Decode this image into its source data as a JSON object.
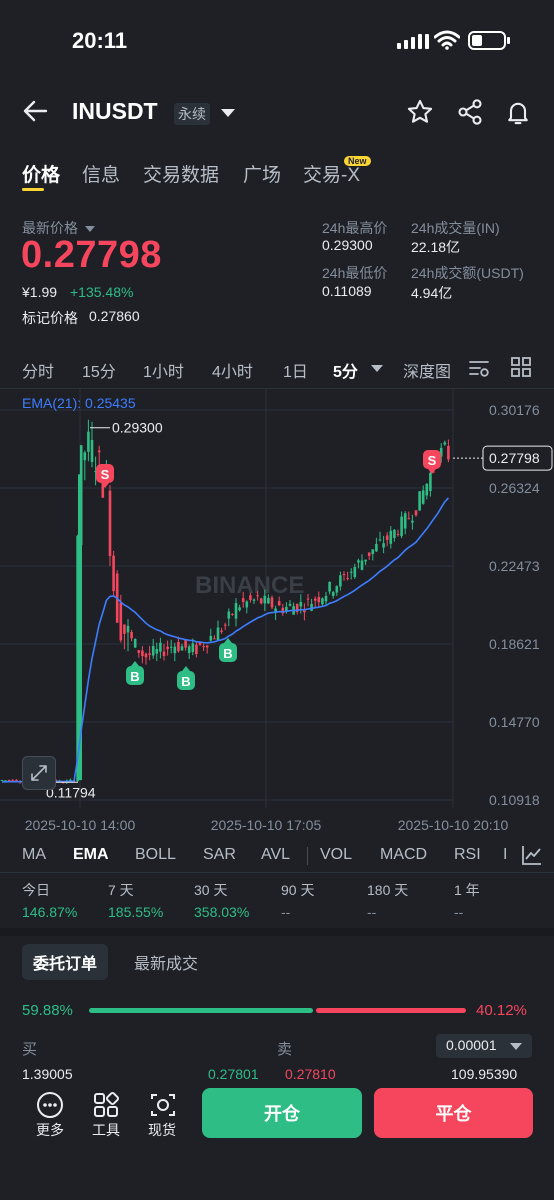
{
  "status_bar": {
    "time": "20:11"
  },
  "header": {
    "symbol": "INUSDT",
    "contract_type": "永续"
  },
  "tabs": [
    {
      "label": "价格",
      "active": true
    },
    {
      "label": "信息"
    },
    {
      "label": "交易数据"
    },
    {
      "label": "广场"
    },
    {
      "label": "交易-X",
      "badge": "New"
    }
  ],
  "ticker": {
    "last_price_label": "最新价格",
    "last_price": "0.27798",
    "cny_price": "¥1.99",
    "change_pct": "+135.48%",
    "mark_price_label": "标记价格",
    "mark_price": "0.27860",
    "high_label": "24h最高价",
    "high": "0.29300",
    "low_label": "24h最低价",
    "low": "0.11089",
    "vol_label": "24h成交量(IN)",
    "vol": "22.18亿",
    "amount_label": "24h成交额(USDT)",
    "amount": "4.94亿"
  },
  "timeframes": [
    {
      "label": "分时"
    },
    {
      "label": "15分"
    },
    {
      "label": "1小时"
    },
    {
      "label": "4小时"
    },
    {
      "label": "1日"
    },
    {
      "label": "5分",
      "active": true
    },
    {
      "label": "深度图"
    }
  ],
  "chart": {
    "ema_label": "EMA(21): 0.25435",
    "watermark": "BINANCE",
    "y_ticks": [
      "0.30176",
      "0.26324",
      "0.22473",
      "0.18621",
      "0.14770",
      "0.10918"
    ],
    "x_ticks": [
      "2025-10-10 14:00",
      "2025-10-10 17:05",
      "2025-10-10 20:10"
    ],
    "current_price_tag": "0.27798",
    "max_label": "0.29300",
    "min_label": "0.11794",
    "markers": [
      {
        "type": "S"
      },
      {
        "type": "B"
      },
      {
        "type": "B"
      },
      {
        "type": "B"
      },
      {
        "type": "S"
      }
    ]
  },
  "chart_data": {
    "type": "candlestick",
    "ylim": [
      0.10918,
      0.30176
    ],
    "y_ticks": [
      0.30176,
      0.26324,
      0.22473,
      0.18621,
      0.1477,
      0.10918
    ],
    "x_ticks": [
      "2025-10-10 14:00",
      "2025-10-10 17:05",
      "2025-10-10 20:10"
    ],
    "series": [
      {
        "name": "EMA(21)",
        "last": 0.25435
      }
    ],
    "annotations": {
      "high": 0.293,
      "low": 0.11794,
      "last": 0.27798
    },
    "key_points": [
      {
        "t": "2025-10-10 14:00",
        "price": 0.1179
      },
      {
        "t": "2025-10-10 14:25",
        "price": 0.293
      },
      {
        "t": "2025-10-10 15:05",
        "price": 0.186
      },
      {
        "t": "2025-10-10 15:45",
        "price": 0.185
      },
      {
        "t": "2025-10-10 17:05",
        "price": 0.206
      },
      {
        "t": "2025-10-10 20:10",
        "price": 0.278
      }
    ]
  },
  "indicators": [
    {
      "label": "MA"
    },
    {
      "label": "EMA",
      "active": true
    },
    {
      "label": "BOLL"
    },
    {
      "label": "SAR"
    },
    {
      "label": "AVL"
    },
    {
      "label": "VOL"
    },
    {
      "label": "MACD"
    },
    {
      "label": "RSI"
    },
    {
      "label": "I"
    }
  ],
  "performance": [
    {
      "label": "今日",
      "value": "146.87%"
    },
    {
      "label": "7 天",
      "value": "185.55%"
    },
    {
      "label": "30 天",
      "value": "358.03%"
    },
    {
      "label": "90 天",
      "value": "--"
    },
    {
      "label": "180 天",
      "value": "--"
    },
    {
      "label": "1 年",
      "value": "--"
    }
  ],
  "orderbook": {
    "tabs": [
      "委托订单",
      "最新成交"
    ],
    "buy_pct": "59.88%",
    "sell_pct": "40.12%",
    "buy_ratio": 0.5988,
    "buy_label": "买",
    "sell_label": "卖",
    "precision": "0.00001",
    "row": {
      "buy_qty": "1.39005",
      "buy_price": "0.27801",
      "sell_price": "0.27810",
      "sell_qty": "109.95390"
    }
  },
  "bottom": {
    "more": "更多",
    "tools": "工具",
    "spot": "现货",
    "open": "开仓",
    "close": "平仓"
  },
  "colors": {
    "up": "#2ebd85",
    "down": "#f6465d",
    "ema": "#3d7dff",
    "accent": "#fcd535",
    "bg": "#1e2026"
  }
}
